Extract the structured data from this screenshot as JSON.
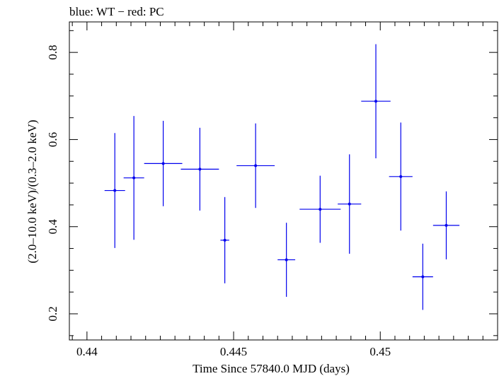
{
  "chart_data": {
    "type": "scatter",
    "title": "blue: WT − red: PC",
    "xlabel": "Time Since 57840.0 MJD (days)",
    "ylabel": "(2.0–10.0 keV)/(0.3–2.0 keV)",
    "xlim": [
      0.4394,
      0.454
    ],
    "ylim": [
      0.14,
      0.87
    ],
    "x_ticks": [
      0.44,
      0.445,
      0.45
    ],
    "x_tick_labels": [
      "0.44",
      "0.445",
      "0.45"
    ],
    "y_ticks": [
      0.2,
      0.4,
      0.6,
      0.8
    ],
    "y_tick_labels": [
      "0.2",
      "0.4",
      "0.6",
      "0.8"
    ],
    "grid": false,
    "series": [
      {
        "color": "#0000ee",
        "points": [
          {
            "x": 0.44095,
            "xerr": 0.00035,
            "y": 0.483,
            "yerr": 0.132
          },
          {
            "x": 0.4416,
            "xerr": 0.00035,
            "y": 0.512,
            "yerr": 0.142
          },
          {
            "x": 0.4426,
            "xerr": 0.00065,
            "y": 0.545,
            "yerr": 0.098
          },
          {
            "x": 0.44385,
            "xerr": 0.00065,
            "y": 0.532,
            "yerr": 0.095
          },
          {
            "x": 0.4447,
            "xerr": 0.00015,
            "y": 0.369,
            "yerr": 0.099
          },
          {
            "x": 0.44575,
            "xerr": 0.00065,
            "y": 0.54,
            "yerr": 0.097
          },
          {
            "x": 0.4468,
            "xerr": 0.0003,
            "y": 0.324,
            "yerr": 0.085
          },
          {
            "x": 0.44795,
            "xerr": 0.0007,
            "y": 0.44,
            "yerr": 0.077
          },
          {
            "x": 0.44895,
            "xerr": 0.0004,
            "y": 0.452,
            "yerr": 0.114
          },
          {
            "x": 0.44985,
            "xerr": 0.0005,
            "y": 0.688,
            "yerr": 0.131
          },
          {
            "x": 0.4507,
            "xerr": 0.0004,
            "y": 0.515,
            "yerr": 0.124
          },
          {
            "x": 0.45145,
            "xerr": 0.00035,
            "y": 0.285,
            "yerr": 0.076
          },
          {
            "x": 0.45225,
            "xerr": 0.00045,
            "y": 0.403,
            "yerr": 0.078
          }
        ]
      }
    ]
  }
}
